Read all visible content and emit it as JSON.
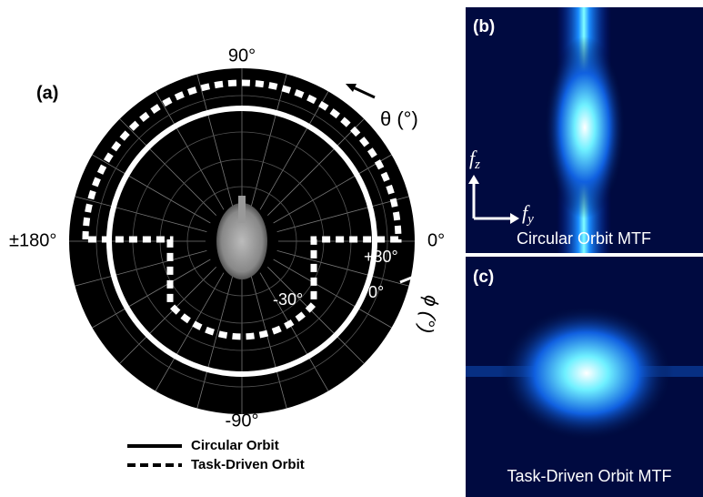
{
  "panel_a": {
    "label": "(a)",
    "direction_labels": {
      "top": "90°",
      "right": "0°",
      "left": "±180°",
      "bottom": "-90°"
    },
    "theta_label": "θ (°)",
    "phi_label": "ϕ (°)",
    "phi_ticks": [
      "+30°",
      "0°",
      "-30°"
    ],
    "legend": [
      "Circular Orbit",
      "Task-Driven Orbit"
    ]
  },
  "panel_b": {
    "label": "(b)",
    "vertical_axis": {
      "symbol": "f",
      "subscript": "z"
    },
    "horizontal_axis": {
      "symbol": "f",
      "subscript": "y"
    },
    "caption": "Circular Orbit MTF"
  },
  "panel_c": {
    "label": "(c)",
    "caption": "Task-Driven Orbit MTF"
  }
}
